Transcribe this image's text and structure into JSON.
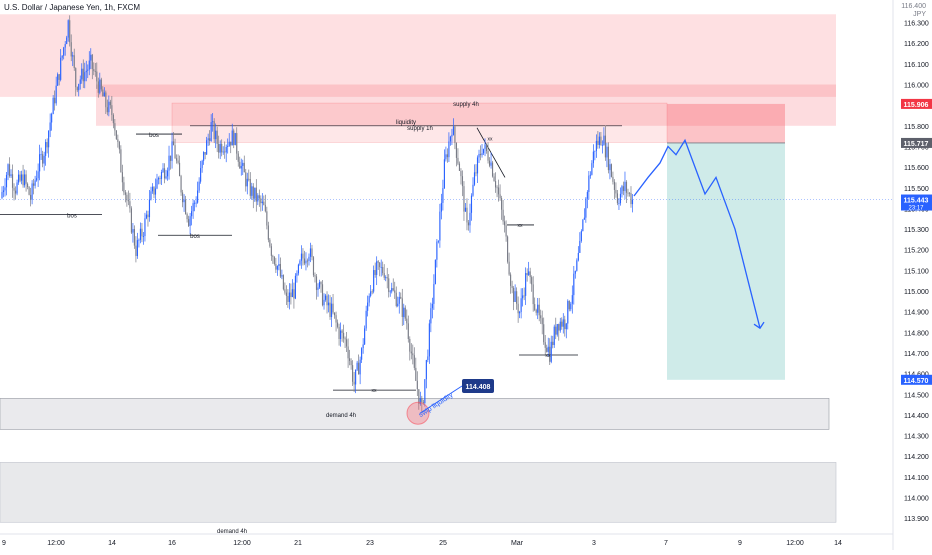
{
  "header": {
    "symbol": "U.S. Dollar / Japanese Yen, 1h, FXCM"
  },
  "axis": {
    "currency_top": "116.400",
    "currency": "JPY",
    "ticks": [
      "116.300",
      "116.200",
      "116.100",
      "116.000",
      "115.800",
      "115.700",
      "115.600",
      "115.500",
      "115.400",
      "115.300",
      "115.200",
      "115.100",
      "115.000",
      "114.900",
      "114.800",
      "114.700",
      "114.600",
      "114.500",
      "114.400",
      "114.300",
      "114.200",
      "114.100",
      "114.000",
      "113.900"
    ],
    "time_labels": [
      "9",
      "12:00",
      "14",
      "16",
      "12:00",
      "21",
      "23",
      "25",
      "Mar",
      "3",
      "7",
      "9",
      "12:00",
      "14"
    ]
  },
  "price_tags": {
    "top": {
      "value": "115.906",
      "color": "#f23645"
    },
    "mid": {
      "value": "115.717",
      "color": "#5d606b"
    },
    "last": {
      "value": "115.443",
      "sub": "23:17",
      "color": "#2962ff"
    },
    "bottom": {
      "value": "114.570",
      "color": "#2962ff"
    }
  },
  "annotations": {
    "bos_labels": [
      "bos",
      "bos",
      "bos"
    ],
    "xx_labels": [
      "xx",
      "xx",
      "xx",
      "xx"
    ],
    "supply_4h": "supply 4h",
    "supply_1h": "supply 1h",
    "liquidity": "liquidity",
    "demand_4h": "demand 4h",
    "demand_4h_2": "demand 4h",
    "sweep": "swip liquidity",
    "sweep_price": "114.408"
  },
  "colors": {
    "bull": "#2962ff",
    "bear": "#787b86",
    "supply_zone": "#f7525f",
    "demand_zone": "#b2b5be",
    "target": "#26a69a",
    "projection": "#2962ff"
  },
  "chart_data": {
    "type": "candlestick",
    "symbol": "USDJPY",
    "timeframe": "1h",
    "ylim": [
      113.9,
      116.4
    ],
    "zones": [
      {
        "label": "",
        "from": 115.94,
        "to": 116.34
      },
      {
        "label": "supply 4h",
        "from": 115.8,
        "to": 116.0
      },
      {
        "label": "supply 1h",
        "from": 115.72,
        "to": 115.91
      },
      {
        "label": "demand 4h",
        "from": 114.33,
        "to": 114.48
      },
      {
        "label": "demand 4h",
        "from": 113.88,
        "to": 114.17
      }
    ],
    "position": {
      "entry": 115.717,
      "stop": 115.906,
      "target": 114.57
    },
    "key_levels": [
      {
        "label": "liquidity",
        "value": 115.8
      },
      {
        "label": "bos",
        "value": 115.76
      },
      {
        "label": "bos",
        "value": 115.37
      },
      {
        "label": "bos",
        "value": 115.32
      },
      {
        "label": "swip liquidity",
        "value": 114.408
      }
    ],
    "close_path": [
      115.45,
      115.6,
      115.5,
      115.55,
      115.45,
      115.6,
      115.7,
      115.9,
      116.1,
      116.3,
      116.0,
      116.05,
      116.1,
      116.0,
      115.9,
      115.85,
      115.6,
      115.4,
      115.2,
      115.3,
      115.45,
      115.55,
      115.6,
      115.7,
      115.5,
      115.35,
      115.45,
      115.65,
      115.8,
      115.7,
      115.72,
      115.75,
      115.6,
      115.5,
      115.45,
      115.4,
      115.2,
      115.1,
      114.95,
      115.0,
      115.15,
      115.2,
      115.05,
      114.95,
      114.9,
      114.8,
      114.75,
      114.55,
      114.7,
      115.0,
      115.1,
      115.1,
      115.0,
      114.95,
      114.85,
      114.6,
      114.42,
      114.8,
      115.2,
      115.6,
      115.8,
      115.6,
      115.3,
      115.55,
      115.7,
      115.65,
      115.5,
      115.3,
      115.0,
      114.9,
      115.1,
      114.95,
      114.8,
      114.7,
      114.85,
      114.85,
      115.0,
      115.2,
      115.5,
      115.7,
      115.75,
      115.6,
      115.45,
      115.5,
      115.44
    ]
  }
}
